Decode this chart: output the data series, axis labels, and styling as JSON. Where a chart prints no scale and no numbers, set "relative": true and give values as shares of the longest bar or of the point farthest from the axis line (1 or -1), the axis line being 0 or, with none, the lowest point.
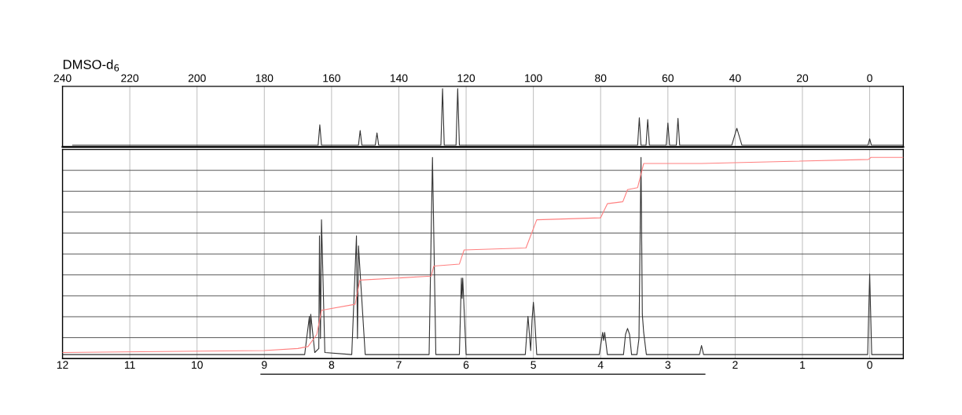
{
  "chart_data": [
    {
      "type": "line",
      "title": "DMSO-d$_{6}$",
      "relative": true,
      "xlim": [
        240,
        -10
      ],
      "xticks": [
        240,
        220,
        200,
        180,
        160,
        140,
        120,
        100,
        80,
        60,
        40,
        20,
        0
      ],
      "tick_labels": "x",
      "grid": "x",
      "legend": false,
      "series": [
        {
          "color": "#333333",
          "x": [
            237,
            164,
            163.5,
            163,
            152,
            151.5,
            151,
            147,
            146.5,
            146,
            127.5,
            127,
            126.5,
            123,
            122.5,
            122,
            69,
            68.5,
            68,
            66.5,
            66,
            65.5,
            60.5,
            60,
            59.5,
            57.5,
            57,
            56.5,
            41,
            39.5,
            38,
            0.5,
            0,
            -0.5,
            -10
          ],
          "values": [
            0.03,
            0.03,
            0.38,
            0.03,
            0.03,
            0.28,
            0.03,
            0.03,
            0.24,
            0.03,
            0.03,
            1,
            0.03,
            0.03,
            1,
            0.03,
            0.03,
            0.5,
            0.03,
            0.03,
            0.47,
            0.03,
            0.03,
            0.41,
            0.03,
            0.03,
            0.49,
            0.03,
            0.03,
            0.32,
            0.03,
            0.03,
            0.14,
            0.03,
            0.03
          ]
        }
      ]
    },
    {
      "type": "line",
      "relative": true,
      "xlim": [
        12,
        -0.5
      ],
      "xticks": [
        12,
        11,
        10,
        9,
        8,
        7,
        6,
        5,
        4,
        3,
        2,
        1,
        0
      ],
      "tick_labels": "x",
      "grid": true,
      "legend": false,
      "series": [
        {
          "color": "#333333",
          "x": [
            12,
            8.4,
            8.33,
            8.32,
            8.31,
            8.25,
            8.19,
            8.18,
            8.165,
            8.15,
            8.1,
            7.7,
            7.63,
            7.615,
            7.6,
            7.5,
            6.55,
            6.5,
            6.45,
            6.1,
            6.07,
            6.06,
            6.05,
            6.0,
            5.12,
            5.08,
            5.04,
            5.02,
            5.0,
            4.98,
            4.95,
            4.02,
            3.97,
            3.955,
            3.94,
            3.9,
            3.66,
            3.63,
            3.6,
            3.57,
            3.54,
            3.46,
            3.43,
            3.4,
            3.38,
            3.36,
            3.32,
            2.53,
            2.5,
            2.47,
            0.03,
            0,
            -0.03,
            -0.5
          ],
          "values": [
            0.02,
            0.02,
            0.21,
            0.1,
            0.22,
            0.03,
            0.05,
            0.61,
            0.1,
            0.69,
            0.03,
            0.02,
            0.61,
            0.1,
            0.56,
            0.02,
            0.02,
            1,
            0.02,
            0.02,
            0.4,
            0.3,
            0.4,
            0.02,
            0.02,
            0.21,
            0.04,
            0.19,
            0.28,
            0.2,
            0.02,
            0.02,
            0.13,
            0.09,
            0.13,
            0.02,
            0.02,
            0.12,
            0.15,
            0.12,
            0.02,
            0.02,
            0.1,
            1,
            0.22,
            0.13,
            0.02,
            0.02,
            0.065,
            0.02,
            0.02,
            0.42,
            0.02,
            0.02
          ]
        },
        {
          "color": "#ff8080",
          "x": [
            12,
            9,
            8.5,
            8.35,
            8.22,
            8.15,
            7.65,
            7.58,
            6.52,
            6.48,
            6.1,
            6.03,
            5.11,
            4.95,
            4.0,
            3.9,
            3.67,
            3.6,
            3.45,
            3.36,
            2.5,
            0.02,
            -0.02,
            -0.5
          ],
          "values": [
            0.03,
            0.04,
            0.05,
            0.06,
            0.12,
            0.24,
            0.27,
            0.39,
            0.41,
            0.46,
            0.47,
            0.54,
            0.55,
            0.69,
            0.7,
            0.77,
            0.78,
            0.84,
            0.85,
            0.97,
            0.97,
            0.99,
            1,
            1
          ]
        }
      ]
    }
  ]
}
